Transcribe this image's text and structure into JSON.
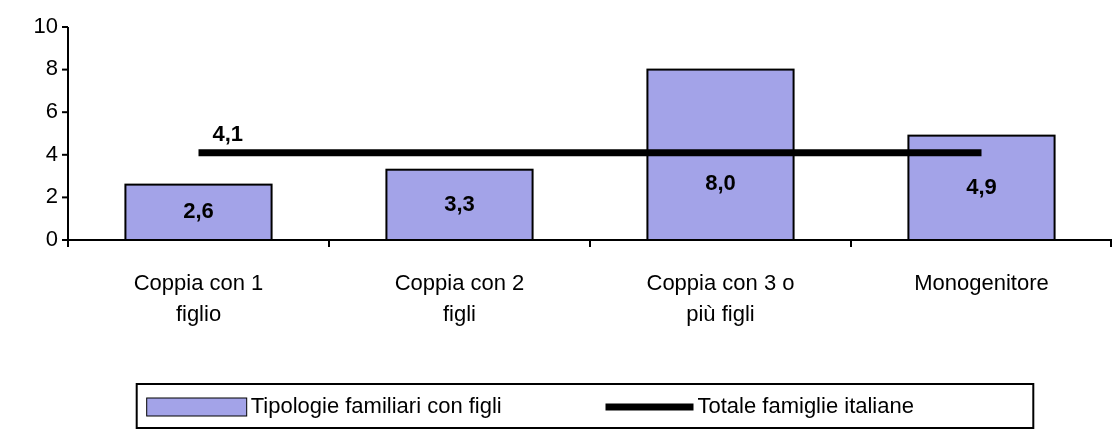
{
  "chart_data": {
    "type": "bar",
    "categories": [
      "Coppia con 1 figlio",
      "Coppia con 2 figli",
      "Coppia con 3 o più figli",
      "Monogenitore"
    ],
    "series": [
      {
        "name": "Tipologie familiari con figli",
        "color": "#a3a3e8",
        "values": [
          2.6,
          3.3,
          8.0,
          4.9
        ],
        "value_labels": [
          "2,6",
          "3,3",
          "8,0",
          "4,9"
        ]
      },
      {
        "name": "Totale famiglie italiane",
        "type": "line",
        "color": "#000000",
        "values": [
          4.1,
          4.1,
          4.1,
          4.1
        ],
        "value_labels": [
          "4,1",
          null,
          null,
          null
        ]
      }
    ],
    "ylim": [
      0,
      10
    ],
    "yticks": [
      0,
      2,
      4,
      6,
      8,
      10
    ],
    "grid": false,
    "legend": "bottom",
    "marker": "none",
    "line_style": "solid"
  }
}
